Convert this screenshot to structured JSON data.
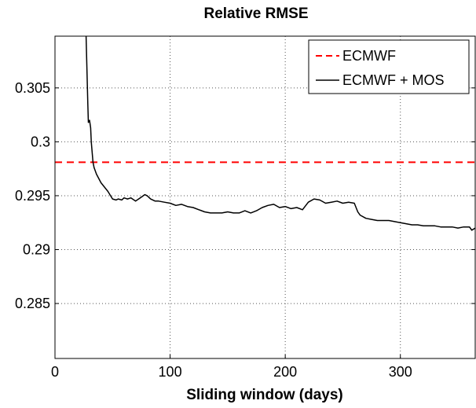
{
  "chart_data": {
    "type": "line",
    "title": "Relative RMSE",
    "xlabel": "Sliding window (days)",
    "ylabel": "",
    "xlim": [
      0,
      365
    ],
    "ylim": [
      0.2799,
      0.3098
    ],
    "xticks": [
      0,
      100,
      200,
      300
    ],
    "xtick_labels": [
      "0",
      "100",
      "200",
      "300"
    ],
    "yticks": [
      0.285,
      0.29,
      0.295,
      0.3,
      0.305
    ],
    "ytick_labels": [
      "0.285",
      "0.29",
      "0.295",
      "0.3",
      "0.305"
    ],
    "grid": true,
    "legend_position": "top-right",
    "series": [
      {
        "name": "ECMWF",
        "style": "dashed",
        "color": "#ff0000",
        "x": [
          0,
          365
        ],
        "y": [
          0.2981,
          0.2981
        ]
      },
      {
        "name": "ECMWF + MOS",
        "style": "solid",
        "color": "#000000",
        "x": [
          27,
          28,
          28.5,
          29,
          30,
          31,
          31.5,
          33,
          34,
          36,
          38,
          40,
          43,
          46,
          50,
          53,
          55,
          58,
          60,
          63,
          66,
          70,
          74,
          78,
          80,
          83,
          87,
          90,
          95,
          100,
          105,
          110,
          115,
          120,
          125,
          130,
          135,
          140,
          145,
          150,
          155,
          160,
          165,
          170,
          175,
          180,
          185,
          190,
          195,
          200,
          205,
          210,
          215,
          220,
          225,
          230,
          235,
          240,
          245,
          250,
          255,
          260,
          263,
          265,
          270,
          275,
          280,
          285,
          290,
          295,
          300,
          305,
          310,
          315,
          320,
          325,
          330,
          335,
          340,
          345,
          350,
          355,
          360,
          362,
          365
        ],
        "y": [
          0.3098,
          0.3058,
          0.3035,
          0.3018,
          0.302,
          0.3013,
          0.3,
          0.2981,
          0.2976,
          0.297,
          0.2966,
          0.2962,
          0.2958,
          0.2954,
          0.2947,
          0.2946,
          0.2947,
          0.2946,
          0.2948,
          0.2947,
          0.2948,
          0.2945,
          0.2948,
          0.2951,
          0.295,
          0.2947,
          0.2945,
          0.2945,
          0.2944,
          0.2943,
          0.2941,
          0.2942,
          0.294,
          0.2939,
          0.2937,
          0.2935,
          0.2934,
          0.2934,
          0.2934,
          0.2935,
          0.2934,
          0.2934,
          0.2936,
          0.2934,
          0.2936,
          0.2939,
          0.2941,
          0.2942,
          0.2939,
          0.294,
          0.2938,
          0.2939,
          0.2937,
          0.2944,
          0.2947,
          0.2946,
          0.2943,
          0.2944,
          0.2945,
          0.2943,
          0.2944,
          0.2943,
          0.2935,
          0.2932,
          0.2929,
          0.2928,
          0.2927,
          0.2927,
          0.2927,
          0.2926,
          0.2925,
          0.2924,
          0.2923,
          0.2923,
          0.2922,
          0.2922,
          0.2922,
          0.2921,
          0.2921,
          0.2921,
          0.292,
          0.2921,
          0.2921,
          0.2918,
          0.292
        ]
      }
    ]
  }
}
